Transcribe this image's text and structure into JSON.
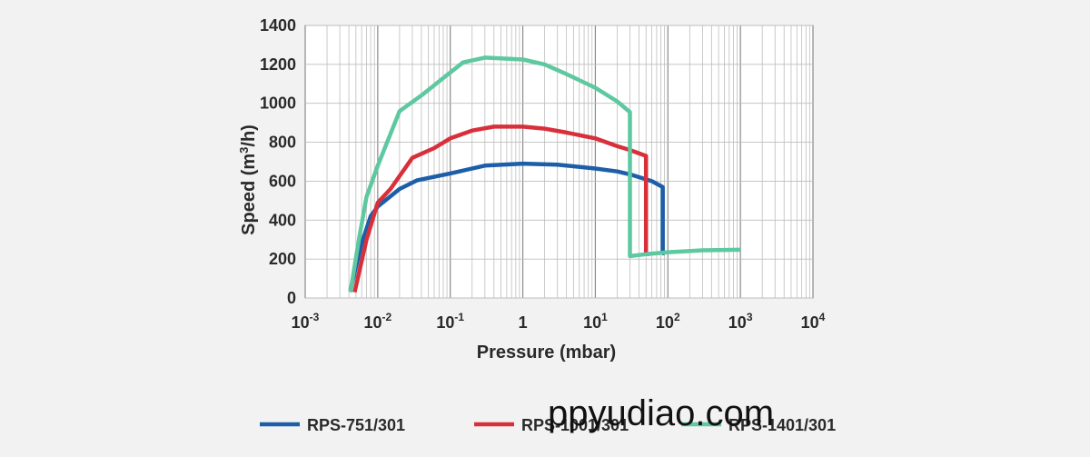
{
  "chart_data": {
    "type": "line",
    "xlabel": "Pressure (mbar)",
    "ylabel_main": "Speed (m",
    "ylabel_sup": "3",
    "ylabel_tail": "/h)",
    "x_scale": "log",
    "xlim": [
      0.001,
      10000
    ],
    "ylim": [
      0,
      1400
    ],
    "x_ticks": [
      {
        "value": 0.001,
        "base": "10",
        "exp": "-3"
      },
      {
        "value": 0.01,
        "base": "10",
        "exp": "-2"
      },
      {
        "value": 0.1,
        "base": "10",
        "exp": "-1"
      },
      {
        "value": 1,
        "base": "1",
        "exp": ""
      },
      {
        "value": 10,
        "base": "10",
        "exp": "1"
      },
      {
        "value": 100,
        "base": "10",
        "exp": "2"
      },
      {
        "value": 1000,
        "base": "10",
        "exp": "3"
      },
      {
        "value": 10000,
        "base": "10",
        "exp": "4"
      }
    ],
    "y_ticks": [
      "0",
      "200",
      "400",
      "600",
      "800",
      "1000",
      "1200",
      "1400"
    ],
    "grid": true,
    "legend_position": "bottom",
    "series": [
      {
        "name": "RPS-751/301",
        "color": "#1c5ea8",
        "points": [
          [
            0.0042,
            40
          ],
          [
            0.006,
            280
          ],
          [
            0.008,
            420
          ],
          [
            0.01,
            470
          ],
          [
            0.02,
            560
          ],
          [
            0.035,
            605
          ],
          [
            0.1,
            640
          ],
          [
            0.3,
            680
          ],
          [
            1,
            690
          ],
          [
            3,
            685
          ],
          [
            10,
            665
          ],
          [
            20,
            650
          ],
          [
            30,
            635
          ],
          [
            60,
            600
          ],
          [
            85,
            570
          ],
          [
            85,
            230
          ],
          [
            90,
            230
          ]
        ]
      },
      {
        "name": "RPS-1001/301",
        "color": "#d8303a",
        "points": [
          [
            0.0048,
            30
          ],
          [
            0.007,
            300
          ],
          [
            0.01,
            490
          ],
          [
            0.015,
            560
          ],
          [
            0.03,
            720
          ],
          [
            0.06,
            770
          ],
          [
            0.1,
            820
          ],
          [
            0.2,
            860
          ],
          [
            0.4,
            880
          ],
          [
            1,
            880
          ],
          [
            2,
            870
          ],
          [
            4,
            850
          ],
          [
            10,
            820
          ],
          [
            20,
            780
          ],
          [
            30,
            760
          ],
          [
            50,
            730
          ],
          [
            50,
            225
          ],
          [
            55,
            225
          ]
        ]
      },
      {
        "name": "RPS-1401/301",
        "color": "#5ec8a0",
        "points": [
          [
            0.0042,
            30
          ],
          [
            0.0055,
            300
          ],
          [
            0.007,
            520
          ],
          [
            0.01,
            680
          ],
          [
            0.02,
            960
          ],
          [
            0.04,
            1040
          ],
          [
            0.08,
            1130
          ],
          [
            0.15,
            1210
          ],
          [
            0.3,
            1235
          ],
          [
            1,
            1225
          ],
          [
            2,
            1200
          ],
          [
            4,
            1150
          ],
          [
            10,
            1080
          ],
          [
            20,
            1010
          ],
          [
            30,
            955
          ],
          [
            30,
            215
          ],
          [
            50,
            225
          ],
          [
            100,
            235
          ],
          [
            300,
            245
          ],
          [
            1000,
            248
          ]
        ]
      }
    ]
  },
  "watermark": "ppyudiao.com"
}
